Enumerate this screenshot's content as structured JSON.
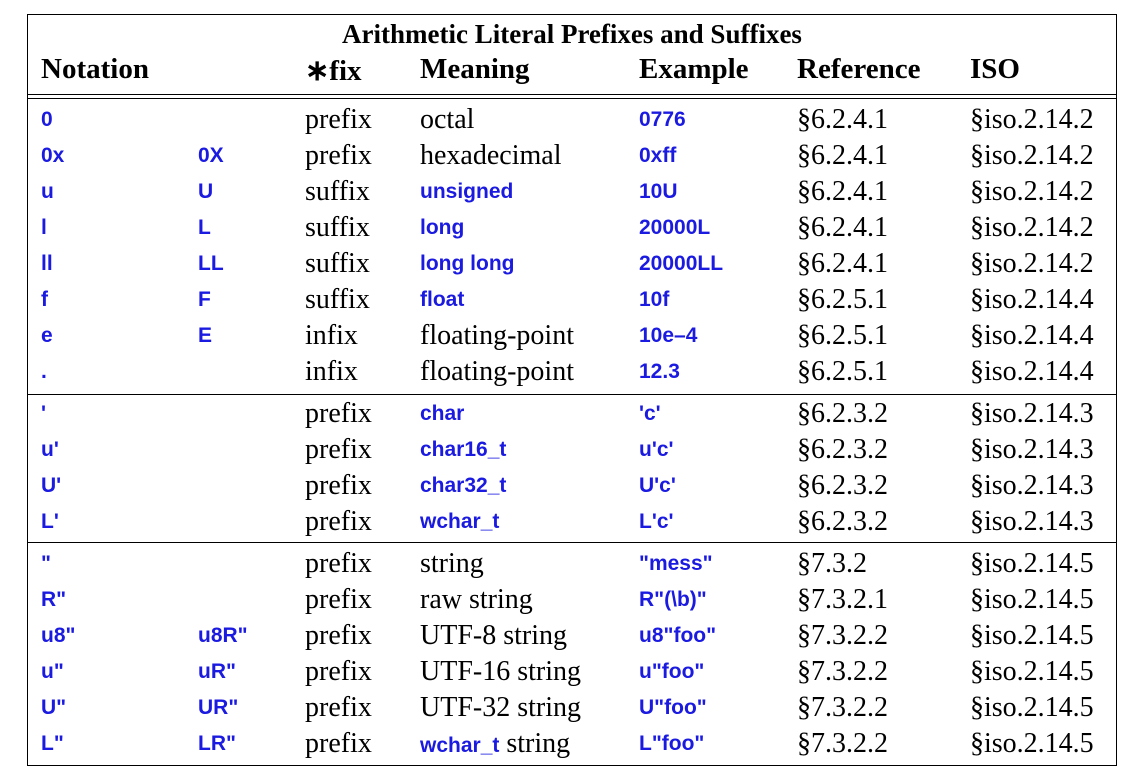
{
  "table": {
    "title": "Arithmetic Literal Prefixes and Suffixes",
    "headers": {
      "notation": "Notation",
      "fix": "∗fix",
      "meaning": "Meaning",
      "example": "Example",
      "reference": "Reference",
      "iso": "ISO"
    },
    "rows": [
      {
        "n1": "0",
        "n2": "",
        "fix": "prefix",
        "meaning": "octal",
        "meaning_code": false,
        "meaning_suffix": "",
        "example": "0776",
        "ref": "§6.2.4.1",
        "iso": "§iso.2.14.2"
      },
      {
        "n1": "0x",
        "n2": "0X",
        "fix": "prefix",
        "meaning": "hexadecimal",
        "meaning_code": false,
        "meaning_suffix": "",
        "example": "0xff",
        "ref": "§6.2.4.1",
        "iso": "§iso.2.14.2"
      },
      {
        "n1": "u",
        "n2": "U",
        "fix": "suffix",
        "meaning": "unsigned",
        "meaning_code": true,
        "meaning_suffix": "",
        "example": "10U",
        "ref": "§6.2.4.1",
        "iso": "§iso.2.14.2"
      },
      {
        "n1": "l",
        "n2": "L",
        "fix": "suffix",
        "meaning": "long",
        "meaning_code": true,
        "meaning_suffix": "",
        "example": "20000L",
        "ref": "§6.2.4.1",
        "iso": "§iso.2.14.2"
      },
      {
        "n1": "ll",
        "n2": "LL",
        "fix": "suffix",
        "meaning": "long long",
        "meaning_code": true,
        "meaning_suffix": "",
        "example": "20000LL",
        "ref": "§6.2.4.1",
        "iso": "§iso.2.14.2"
      },
      {
        "n1": "f",
        "n2": "F",
        "fix": "suffix",
        "meaning": "float",
        "meaning_code": true,
        "meaning_suffix": "",
        "example": "10f",
        "ref": "§6.2.5.1",
        "iso": "§iso.2.14.4"
      },
      {
        "n1": "e",
        "n2": "E",
        "fix": "infix",
        "meaning": "floating-point",
        "meaning_code": false,
        "meaning_suffix": "",
        "example": "10e–4",
        "ref": "§6.2.5.1",
        "iso": "§iso.2.14.4"
      },
      {
        "n1": ".",
        "n2": "",
        "fix": "infix",
        "meaning": "floating-point",
        "meaning_code": false,
        "meaning_suffix": "",
        "example": "12.3",
        "ref": "§6.2.5.1",
        "iso": "§iso.2.14.4"
      },
      {
        "n1": "'",
        "n2": "",
        "fix": "prefix",
        "meaning": "char",
        "meaning_code": true,
        "meaning_suffix": "",
        "example": "'c'",
        "ref": "§6.2.3.2",
        "iso": "§iso.2.14.3"
      },
      {
        "n1": "u'",
        "n2": "",
        "fix": "prefix",
        "meaning": "char16_t",
        "meaning_code": true,
        "meaning_suffix": "",
        "example": "u'c'",
        "ref": "§6.2.3.2",
        "iso": "§iso.2.14.3"
      },
      {
        "n1": "U'",
        "n2": "",
        "fix": "prefix",
        "meaning": "char32_t",
        "meaning_code": true,
        "meaning_suffix": "",
        "example": "U'c'",
        "ref": "§6.2.3.2",
        "iso": "§iso.2.14.3"
      },
      {
        "n1": "L'",
        "n2": "",
        "fix": "prefix",
        "meaning": "wchar_t",
        "meaning_code": true,
        "meaning_suffix": "",
        "example": "L'c'",
        "ref": "§6.2.3.2",
        "iso": "§iso.2.14.3"
      },
      {
        "n1": "\"",
        "n2": "",
        "fix": "prefix",
        "meaning": "string",
        "meaning_code": false,
        "meaning_suffix": "",
        "example": "\"mess\"",
        "ref": "§7.3.2",
        "iso": "§iso.2.14.5"
      },
      {
        "n1": "R\"",
        "n2": "",
        "fix": "prefix",
        "meaning": "raw string",
        "meaning_code": false,
        "meaning_suffix": "",
        "example": "R\"(\\b)\"",
        "ref": "§7.3.2.1",
        "iso": "§iso.2.14.5"
      },
      {
        "n1": "u8\"",
        "n2": "u8R\"",
        "fix": "prefix",
        "meaning": "UTF-8 string",
        "meaning_code": false,
        "meaning_suffix": "",
        "example": "u8\"foo\"",
        "ref": "§7.3.2.2",
        "iso": "§iso.2.14.5"
      },
      {
        "n1": "u\"",
        "n2": "uR\"",
        "fix": "prefix",
        "meaning": "UTF-16 string",
        "meaning_code": false,
        "meaning_suffix": "",
        "example": "u\"foo\"",
        "ref": "§7.3.2.2",
        "iso": "§iso.2.14.5"
      },
      {
        "n1": "U\"",
        "n2": "UR\"",
        "fix": "prefix",
        "meaning": "UTF-32 string",
        "meaning_code": false,
        "meaning_suffix": "",
        "example": "U\"foo\"",
        "ref": "§7.3.2.2",
        "iso": "§iso.2.14.5"
      },
      {
        "n1": "L\"",
        "n2": "LR\"",
        "fix": "prefix",
        "meaning": "wchar_t",
        "meaning_code": true,
        "meaning_suffix": " string",
        "example": "L\"foo\"",
        "ref": "§7.3.2.2",
        "iso": "§iso.2.14.5"
      }
    ]
  },
  "colors": {
    "code": "#1a1ae0",
    "text": "#000000",
    "rule": "#000000"
  }
}
